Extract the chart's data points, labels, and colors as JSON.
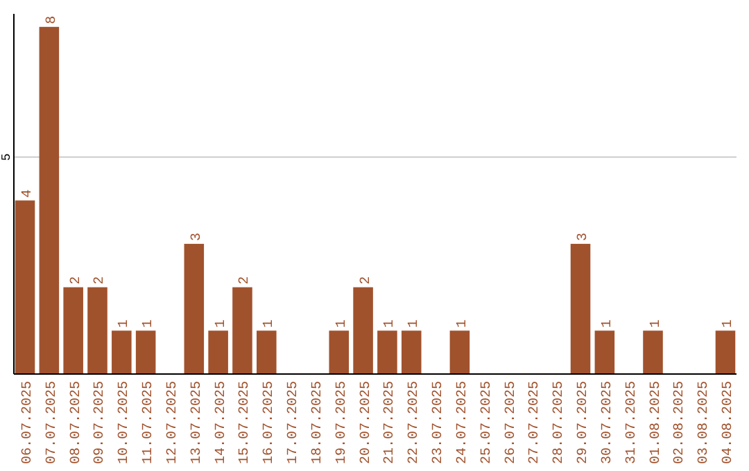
{
  "chart_data": {
    "type": "bar",
    "categories": [
      "06.07.2025",
      "07.07.2025",
      "08.07.2025",
      "09.07.2025",
      "10.07.2025",
      "11.07.2025",
      "12.07.2025",
      "13.07.2025",
      "14.07.2025",
      "15.07.2025",
      "16.07.2025",
      "17.07.2025",
      "18.07.2025",
      "19.07.2025",
      "20.07.2025",
      "21.07.2025",
      "22.07.2025",
      "23.07.2025",
      "24.07.2025",
      "25.07.2025",
      "26.07.2025",
      "27.07.2025",
      "28.07.2025",
      "29.07.2025",
      "30.07.2025",
      "31.07.2025",
      "01.08.2025",
      "02.08.2025",
      "03.08.2025",
      "04.08.2025"
    ],
    "values": [
      4,
      8,
      2,
      2,
      1,
      1,
      null,
      3,
      1,
      2,
      1,
      null,
      null,
      1,
      2,
      1,
      1,
      null,
      1,
      null,
      null,
      null,
      null,
      3,
      1,
      null,
      1,
      null,
      null,
      1
    ],
    "color": "#a0522d",
    "ylim": [
      0,
      8.3
    ],
    "yticks": [
      5
    ],
    "grid": "y",
    "data_labels": true
  }
}
